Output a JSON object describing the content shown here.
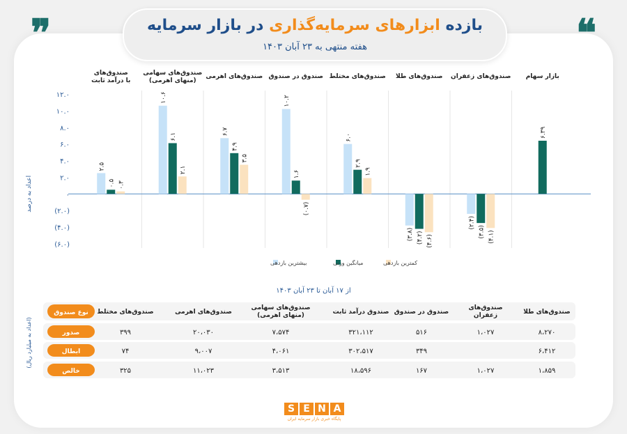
{
  "header": {
    "title_part1": "بازده",
    "title_part2": "ابزارهای سرمایه‌گذاری",
    "title_part3": "در بازار سرمایه",
    "subtitle": "هفته منتهی به ۲۳ آبان ۱۴۰۳",
    "quote_open": "❞",
    "quote_close": "❝"
  },
  "colors": {
    "max": "#c6e2f8",
    "avg": "#116b5e",
    "min": "#fbe2bf",
    "accent": "#f28c1c",
    "navy": "#1f4e8a"
  },
  "chart_data": {
    "type": "bar",
    "categories": [
      [
        "صندوق‌های",
        "با درآمد ثابت"
      ],
      [
        "صندوق‌های سهامی",
        "(منهای اهرمی)"
      ],
      [
        "صندوق‌های اهرمی"
      ],
      [
        "صندوق در صندوق"
      ],
      [
        "صندوق‌های مختلط"
      ],
      [
        "صندوق‌های طلا"
      ],
      [
        "صندوق‌های زعفران"
      ],
      [
        "بازار سهام"
      ]
    ],
    "series": [
      {
        "name": "بیشترین بازدهی",
        "key": "max",
        "values": [
          2.5,
          10.6,
          6.7,
          10.2,
          6.0,
          -3.8,
          -2.4,
          null
        ],
        "labels": [
          "۲.۵",
          "۱۰.۶",
          "۶.۷",
          "۱۰.۲",
          "۶.۰",
          "(۳.۸)",
          "(۲.۴)",
          ""
        ]
      },
      {
        "name": "میانگین وزنی",
        "key": "avg",
        "values": [
          0.5,
          6.1,
          4.9,
          1.6,
          2.9,
          -4.2,
          -3.5,
          6.39
        ],
        "labels": [
          "۰.۵",
          "۶.۱",
          "۴.۹",
          "۱.۶",
          "۲.۹",
          "(۴.۲)",
          "(۳.۵)",
          "۶.۳۹"
        ]
      },
      {
        "name": "کمترین بازدهی",
        "key": "min",
        "values": [
          0.3,
          2.1,
          3.5,
          -0.7,
          1.9,
          -4.6,
          -4.1,
          null
        ],
        "labels": [
          "۰.۳",
          "۲.۱",
          "۳.۵",
          "(۰.۷)",
          "۱.۹",
          "(۴.۶)",
          "(۴.۱)",
          ""
        ]
      }
    ],
    "ylim": [
      -6,
      12
    ],
    "yticks": [
      12,
      10,
      8,
      6,
      4,
      2,
      0,
      -2,
      -4,
      -6
    ],
    "ytick_labels": [
      "۱۲.۰",
      "۱۰.۰",
      "۸.۰",
      "۶.۰",
      "۴.۰",
      "۲.۰",
      "۰",
      "(۲.۰)",
      "(۴.۰)",
      "(۶.۰)"
    ],
    "ylabel": "اعداد به درصد",
    "legend": [
      "بیشترین بازدهی",
      "میانگین وزنی",
      "کمترین بازدهی"
    ]
  },
  "table": {
    "caption": "از ۱۷ آبان تا ۲۳ آبان ۱۴۰۳",
    "unit_label": "(اعداد به میلیارد ریال)",
    "header_label": "نوع صندوق",
    "columns": [
      [
        "صندوق‌های مختلط"
      ],
      [
        "صندوق‌های اهرمی"
      ],
      [
        "صندوق‌های سهامی",
        "(منهای اهرمی)"
      ],
      [
        "صندوق درآمد ثابت"
      ],
      [
        "صندوق در صندوق"
      ],
      [
        "صندوق‌های",
        "زعفران"
      ],
      [
        "صندوق‌های طلا"
      ]
    ],
    "rows": [
      {
        "label": "صدور",
        "values": [
          "۳۹۹",
          "۲۰،۰۳۰",
          "۷،۵۷۴",
          "۳۲۱،۱۱۲",
          "۵۱۶",
          "۱،۰۲۷",
          "۸،۲۷۰"
        ]
      },
      {
        "label": "ابطال",
        "values": [
          "۷۴",
          "۹،۰۰۷",
          "۴،۰۶۱",
          "۳۰۲،۵۱۷",
          "۳۴۹",
          "",
          "۶،۴۱۲"
        ]
      },
      {
        "label": "خالص",
        "values": [
          "۳۲۵",
          "۱۱،۰۲۳",
          "۳،۵۱۳",
          "۱۸،۵۹۶",
          "۱۶۷",
          "۱،۰۲۷",
          "۱،۸۵۹"
        ]
      }
    ]
  },
  "footer": {
    "logo_letters": [
      "S",
      "E",
      "N",
      "A"
    ],
    "logo_sub": "پایگاه خبری بازار سرمایه ایران"
  }
}
